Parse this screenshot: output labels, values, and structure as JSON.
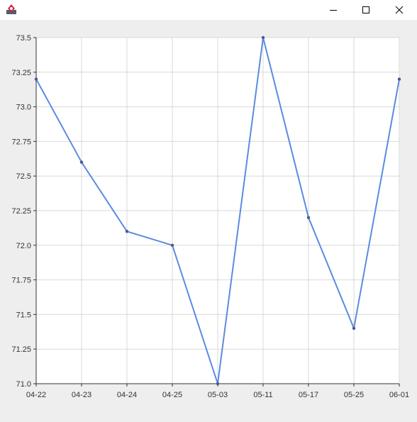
{
  "window": {
    "title": "",
    "icon": "java-app-icon",
    "controls": [
      "minimize-icon",
      "maximize-icon",
      "close-icon"
    ]
  },
  "colors": {
    "background": "#eeeeee",
    "plot_bg": "#ffffff",
    "grid": "#d9d9d9",
    "line": "#5b8be0",
    "point": "#4a5a8a"
  },
  "chart_data": {
    "type": "line",
    "title": "",
    "xlabel": "",
    "ylabel": "",
    "categories": [
      "04-22",
      "04-23",
      "04-24",
      "04-25",
      "05-03",
      "05-11",
      "05-17",
      "05-25",
      "06-01"
    ],
    "series": [
      {
        "values": [
          73.2,
          72.6,
          72.1,
          72.0,
          71.0,
          73.5,
          72.2,
          71.4,
          73.2
        ]
      }
    ],
    "ylim": [
      71.0,
      73.5
    ],
    "y_ticks": [
      "71.0",
      "71.25",
      "71.5",
      "71.75",
      "72.0",
      "72.25",
      "72.5",
      "72.75",
      "73.0",
      "73.25",
      "73.5"
    ],
    "grid": true,
    "legend": "none"
  }
}
